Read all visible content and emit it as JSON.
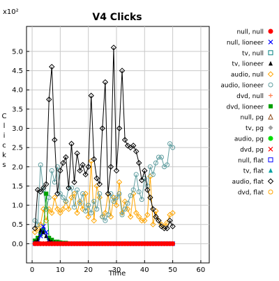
{
  "chart_data": {
    "type": "line",
    "title": "V4 Clicks",
    "xlabel": "Time",
    "ylabel": "Clicks",
    "y_multiplier_label": "x10²",
    "xlim": [
      -2,
      63
    ],
    "ylim": [
      -0.5,
      5.65
    ],
    "x_ticks": [
      0,
      10,
      20,
      30,
      40,
      50,
      60
    ],
    "y_ticks": [
      0.0,
      0.5,
      1.0,
      1.5,
      2.0,
      2.5,
      3.0,
      3.5,
      4.0,
      4.5,
      5.0
    ],
    "y_tick_labels": [
      "0.0",
      "0.5",
      "1.0",
      "1.5",
      "2.0",
      "2.5",
      "3.0",
      "3.5",
      "4.0",
      "4.5",
      "5.0"
    ],
    "grid": true,
    "legend_position": "right",
    "series": [
      {
        "name": "null, null",
        "color": "#ff0000",
        "marker": "circle-filled",
        "x": [
          1,
          2,
          3,
          4,
          5,
          6,
          7,
          8,
          9,
          10,
          11,
          12,
          13,
          14,
          15,
          16,
          17,
          18,
          19,
          20,
          21,
          22,
          23,
          24,
          25,
          26,
          27,
          28,
          29,
          30,
          31,
          32,
          33,
          34,
          35,
          36,
          37,
          38,
          39,
          40,
          41,
          42,
          43,
          44,
          45,
          46,
          47,
          48,
          49,
          50
        ],
        "y": [
          0,
          0,
          0,
          0,
          0,
          0,
          0,
          0,
          0,
          0,
          0,
          0,
          0,
          0,
          0,
          0,
          0,
          0,
          0,
          0,
          0,
          0,
          0,
          0,
          0,
          0,
          0,
          0,
          0,
          0,
          0,
          0,
          0,
          0,
          0,
          0,
          0,
          0,
          0,
          0,
          0,
          0,
          0,
          0,
          0,
          0,
          0,
          0,
          0,
          0
        ]
      },
      {
        "name": "null, lioneer",
        "color": "#0000ff",
        "marker": "x",
        "x": [
          1,
          2,
          3,
          4,
          5,
          6,
          7,
          8,
          9,
          10,
          11,
          12,
          13,
          14,
          15,
          16,
          17,
          18,
          19,
          20,
          21,
          22,
          23,
          24,
          25,
          26,
          27,
          28,
          29,
          30,
          31,
          32,
          33,
          34,
          35,
          36,
          37,
          38,
          39,
          40,
          41,
          42,
          43,
          44,
          45,
          46,
          47,
          48,
          49,
          50
        ],
        "y": [
          0,
          0,
          0.2,
          0.45,
          0.3,
          0,
          0,
          0,
          0,
          0,
          0,
          0,
          0,
          0,
          0,
          0,
          0,
          0,
          0,
          0,
          0,
          0,
          0,
          0,
          0,
          0,
          0,
          0,
          0,
          0,
          0,
          0,
          0,
          0,
          0,
          0,
          0,
          0,
          0,
          0,
          0,
          0,
          0,
          0,
          0,
          0,
          0,
          0,
          0,
          0
        ]
      },
      {
        "name": "tv, null",
        "color": "#008080",
        "marker": "square-open",
        "x": [],
        "y": []
      },
      {
        "name": "tv, lioneer",
        "color": "#000000",
        "marker": "triangle-filled",
        "x": [
          1,
          2,
          3,
          4,
          5,
          6,
          7,
          8,
          9,
          10,
          11,
          12,
          13,
          14,
          15,
          16,
          17,
          18,
          19,
          20,
          21,
          22,
          23,
          24,
          25,
          26,
          27,
          28,
          29,
          30,
          31,
          32,
          33,
          34,
          35,
          36,
          37,
          38,
          39,
          40,
          41,
          42,
          43,
          44,
          45,
          46,
          47,
          48,
          49,
          50
        ],
        "y": [
          0.05,
          0.1,
          0.35,
          0.3,
          0.2,
          0.1,
          0.05,
          0.03,
          0.02,
          0.02,
          0,
          0,
          0,
          0,
          0,
          0,
          0,
          0,
          0,
          0,
          0,
          0,
          0,
          0,
          0,
          0,
          0,
          0,
          0,
          0,
          0,
          0,
          0,
          0,
          0,
          0,
          0,
          0,
          0,
          0,
          0,
          0,
          0,
          0,
          0,
          0,
          0,
          0,
          0,
          0
        ]
      },
      {
        "name": "audio, null",
        "color": "#ffa500",
        "marker": "diamond-open",
        "x": [
          1,
          2,
          3,
          4,
          5,
          6,
          7,
          8,
          9,
          10,
          11,
          12,
          13,
          14,
          15,
          16,
          17,
          18,
          19,
          20,
          21,
          22,
          23,
          24,
          25,
          26,
          27,
          28,
          29,
          30,
          31,
          32,
          33,
          34,
          35,
          36,
          37,
          38,
          39,
          40,
          41,
          42,
          43,
          44,
          45,
          46,
          47,
          48,
          49,
          50
        ],
        "y": [
          0.3,
          0.4,
          0.5,
          0.9,
          0.6,
          0.9,
          0.8,
          1.2,
          0.9,
          0.8,
          0.9,
          1.1,
          0.9,
          1.2,
          1.3,
          0.8,
          1.1,
          0.9,
          1.3,
          0.7,
          2.15,
          0.6,
          1.5,
          1.2,
          0.7,
          0.8,
          1.3,
          0.7,
          1.2,
          1.0,
          1.6,
          0.8,
          1.1,
          0.9,
          0.7,
          1.3,
          0.8,
          0.7,
          0.6,
          0.6,
          0.75,
          1.75,
          0.5,
          0.85,
          0.6,
          0.5,
          0.45,
          0.55,
          0.75,
          0.8
        ]
      },
      {
        "name": "audio, lioneer",
        "color": "#5f9ea0",
        "marker": "circle-open",
        "x": [
          1,
          2,
          3,
          4,
          5,
          6,
          7,
          8,
          9,
          10,
          11,
          12,
          13,
          14,
          15,
          16,
          17,
          18,
          19,
          20,
          21,
          22,
          23,
          24,
          25,
          26,
          27,
          28,
          29,
          30,
          31,
          32,
          33,
          34,
          35,
          36,
          37,
          38,
          39,
          40,
          41,
          42,
          43,
          44,
          45,
          46,
          47,
          48,
          49,
          50
        ],
        "y": [
          0.6,
          0.5,
          2.05,
          1.4,
          0.9,
          1.2,
          1.9,
          1.6,
          2.0,
          1.3,
          1.2,
          1.1,
          1.45,
          1.45,
          0.95,
          1.4,
          1.05,
          1.3,
          0.85,
          1.0,
          0.8,
          1.1,
          0.9,
          1.3,
          0.7,
          0.6,
          0.75,
          1.3,
          1.1,
          1.2,
          1.3,
          0.75,
          0.9,
          1.05,
          1.25,
          1.4,
          1.8,
          1.35,
          1.15,
          1.7,
          1.5,
          2.0,
          1.8,
          2.1,
          2.25,
          2.25,
          2.0,
          2.05,
          2.6,
          2.5
        ]
      },
      {
        "name": "dvd, null",
        "color": "#ff7f50",
        "marker": "plus",
        "x": [],
        "y": []
      },
      {
        "name": "dvd, lioneer",
        "color": "#00a000",
        "marker": "square-filled",
        "x": [
          1,
          2,
          3,
          4,
          5,
          6,
          7,
          8,
          9,
          10,
          11,
          12,
          13,
          14,
          15,
          16,
          17,
          18,
          19,
          20,
          21,
          22,
          23,
          24,
          25,
          26,
          27,
          28,
          29,
          30,
          31,
          32,
          33,
          34,
          35,
          36,
          37,
          38,
          39,
          40,
          41,
          42,
          43,
          44,
          45,
          46,
          47,
          48,
          49,
          50
        ],
        "y": [
          0.08,
          0.15,
          0.25,
          0.35,
          1.3,
          0.15,
          0.1,
          0.05,
          0.05,
          0.03,
          0.02,
          0.02,
          0,
          0,
          0,
          0,
          0,
          0,
          0,
          0,
          0,
          0,
          0,
          0,
          0,
          0,
          0,
          0,
          0,
          0,
          0,
          0,
          0,
          0,
          0,
          0,
          0,
          0,
          0,
          0,
          0,
          0,
          0,
          0,
          0,
          0,
          0,
          0,
          0,
          0
        ]
      },
      {
        "name": "null, pg",
        "color": "#8b4513",
        "marker": "triangle-open",
        "x": [],
        "y": []
      },
      {
        "name": "tv, pg",
        "color": "#a0a0a0",
        "marker": "diamond-filled",
        "x": [],
        "y": []
      },
      {
        "name": "audio, pg",
        "color": "#00dd00",
        "marker": "circle-filled",
        "x": [],
        "y": []
      },
      {
        "name": "dvd, pg",
        "color": "#ff0000",
        "marker": "x",
        "x": [],
        "y": []
      },
      {
        "name": "null, flat",
        "color": "#0000ff",
        "marker": "square-open",
        "x": [],
        "y": []
      },
      {
        "name": "tv, flat",
        "color": "#00a0a0",
        "marker": "triangle-filled",
        "x": [],
        "y": []
      },
      {
        "name": "audio, flat",
        "color": "#000000",
        "marker": "diamond-open",
        "x": [
          1,
          2,
          3,
          4,
          5,
          6,
          7,
          8,
          9,
          10,
          11,
          12,
          13,
          14,
          15,
          16,
          17,
          18,
          19,
          20,
          21,
          22,
          23,
          24,
          25,
          26,
          27,
          28,
          29,
          30,
          31,
          32,
          33,
          34,
          35,
          36,
          37,
          38,
          39,
          40,
          41,
          42,
          43,
          44,
          45,
          46,
          47,
          48,
          49,
          50
        ],
        "y": [
          0.4,
          1.4,
          1.35,
          1.45,
          1.55,
          3.75,
          4.6,
          2.7,
          1.3,
          1.9,
          2.1,
          2.25,
          1.45,
          2.6,
          1.6,
          2.35,
          1.9,
          2.05,
          1.8,
          2.0,
          3.85,
          2.2,
          1.7,
          1.55,
          3.0,
          4.2,
          1.3,
          2.0,
          5.1,
          1.9,
          3.0,
          4.5,
          2.7,
          2.55,
          2.5,
          2.55,
          2.4,
          2.1,
          1.65,
          1.9,
          1.4,
          1.2,
          0.9,
          0.7,
          0.6,
          0.45,
          0.4,
          0.4,
          0.6,
          0.45
        ]
      },
      {
        "name": "dvd, flat",
        "color": "#ffa500",
        "marker": "circle-open",
        "x": [],
        "y": []
      }
    ]
  }
}
